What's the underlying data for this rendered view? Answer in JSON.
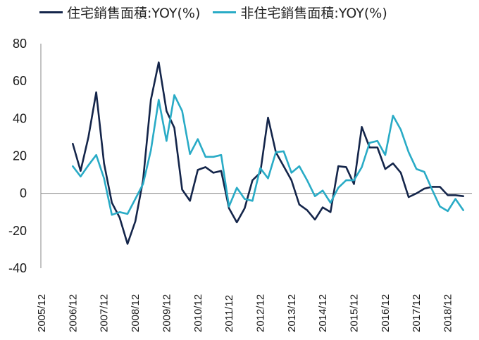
{
  "chart_data": {
    "type": "line",
    "title": "",
    "xlabel": "",
    "ylabel": "",
    "ylim": [
      -40,
      80
    ],
    "yticks": [
      -40,
      -20,
      0,
      20,
      40,
      60,
      80
    ],
    "x": [
      "2006Q4",
      "2007Q1",
      "2007Q2",
      "2007Q3",
      "2007Q4",
      "2008Q1",
      "2008Q2",
      "2008Q3",
      "2008Q4",
      "2009Q1",
      "2009Q2",
      "2009Q3",
      "2009Q4",
      "2010Q1",
      "2010Q2",
      "2010Q3",
      "2010Q4",
      "2011Q1",
      "2011Q2",
      "2011Q3",
      "2011Q4",
      "2012Q1",
      "2012Q2",
      "2012Q3",
      "2012Q4",
      "2013Q1",
      "2013Q2",
      "2013Q3",
      "2013Q4",
      "2014Q1",
      "2014Q2",
      "2014Q3",
      "2014Q4",
      "2015Q1",
      "2015Q2",
      "2015Q3",
      "2015Q4",
      "2016Q1",
      "2016Q2",
      "2016Q3",
      "2016Q4",
      "2017Q1",
      "2017Q2",
      "2017Q3",
      "2017Q4",
      "2018Q1",
      "2018Q2",
      "2018Q3",
      "2018Q4",
      "2019Q1",
      "2019Q2"
    ],
    "x_tick_labels": [
      "2005/12",
      "2006/12",
      "2007/12",
      "2008/12",
      "2009/12",
      "2010/12",
      "2011/12",
      "2012/12",
      "2013/12",
      "2014/12",
      "2015/12",
      "2016/12",
      "2017/12",
      "2018/12"
    ],
    "legend": "top",
    "series": [
      {
        "name": "住宅銷售面積:YOY(%)",
        "color": "#14254a",
        "values": [
          26.5,
          12,
          30,
          54,
          16,
          -5,
          -13,
          -27,
          -15,
          7,
          50,
          70,
          44,
          35,
          2,
          -4,
          12.5,
          14,
          11,
          12,
          -8,
          -15.5,
          -8,
          7,
          11,
          40.5,
          22,
          14.5,
          7,
          -6,
          -9,
          -14,
          -7.5,
          -10,
          14.5,
          14,
          5,
          35.5,
          24.5,
          24.5,
          13,
          16,
          11,
          -2,
          0,
          2.5,
          3.5,
          3.5,
          -1,
          -1,
          -1.5
        ]
      },
      {
        "name": "非住宅銷售面積:YOY(%)",
        "color": "#29abc6",
        "values": [
          14.5,
          9,
          15,
          20.5,
          8,
          -11.5,
          -10,
          -11,
          -3,
          5,
          23,
          50,
          28,
          52.5,
          44,
          21,
          29,
          19.5,
          19.5,
          20.5,
          -7,
          3,
          -3,
          -4,
          13.5,
          8,
          22,
          22.5,
          11,
          14.5,
          7,
          -1.5,
          1.5,
          -5,
          3,
          7,
          7,
          14,
          27,
          28,
          20.5,
          41.5,
          34,
          22,
          13,
          11.5,
          2,
          -7,
          -9.5,
          -3,
          -9
        ]
      }
    ]
  }
}
